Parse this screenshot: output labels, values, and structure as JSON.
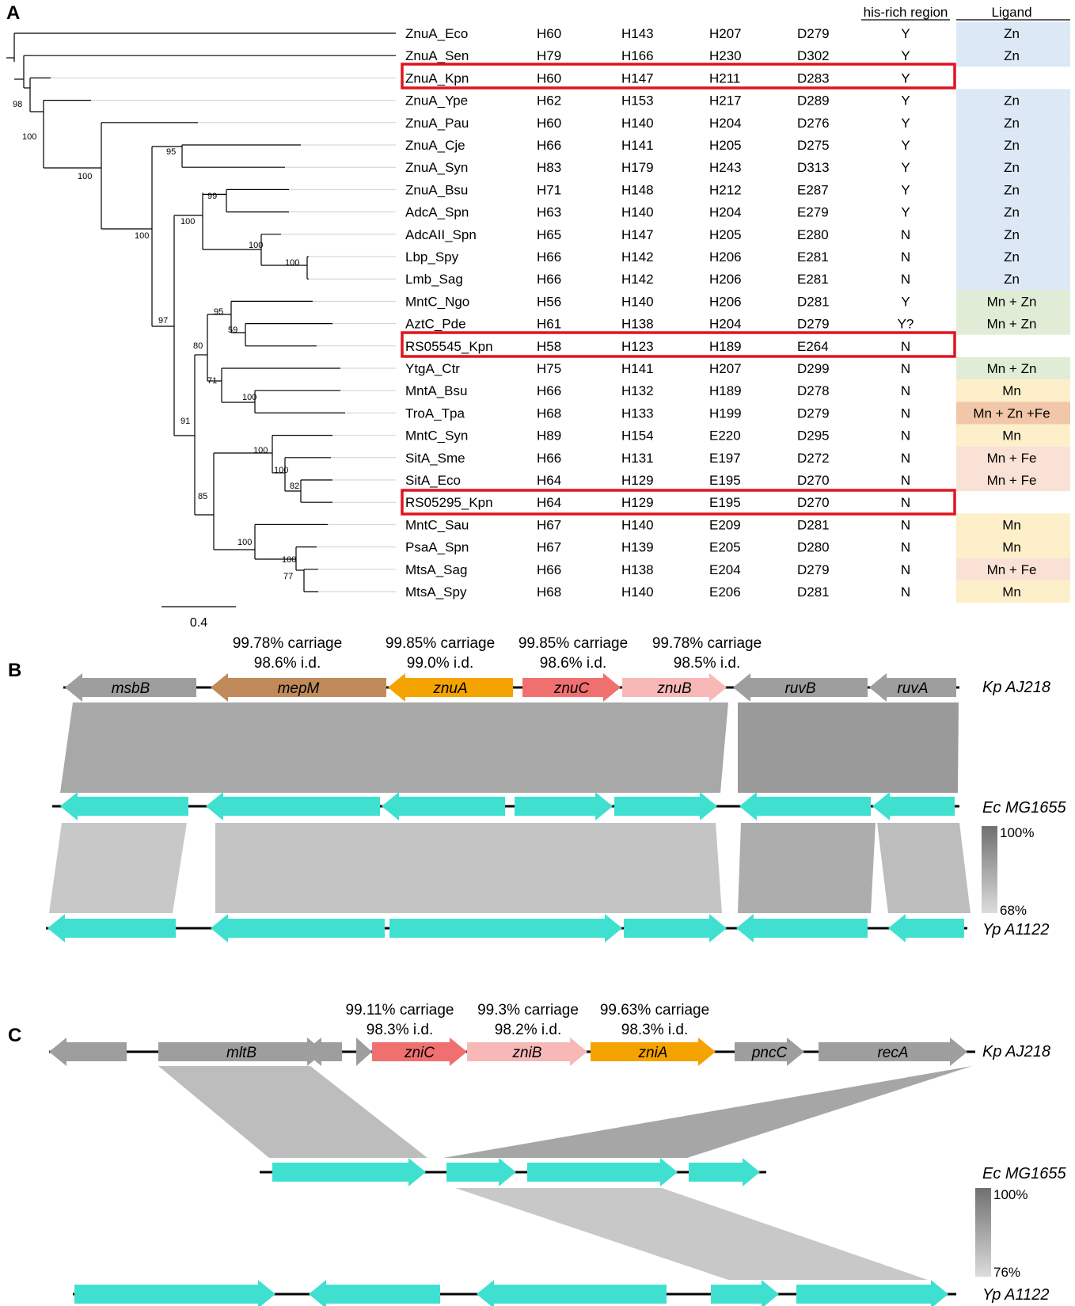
{
  "panel_a": {
    "label": "A",
    "headers": {
      "his": "his-rich region",
      "ligand": "Ligand"
    },
    "scale_value": "0.4",
    "colors": {
      "Zn": "#dce8f5",
      "Mn + Zn": "#e1ecd6",
      "Mn": "#fcefc9",
      "Mn + Fe": "#f9e1d6",
      "Mn + Zn +Fe": "#f2c6a8"
    },
    "rows": [
      {
        "name": "ZnuA_Eco",
        "r1": "H60",
        "r2": "H143",
        "r3": "H207",
        "r4": "D279",
        "his": "Y",
        "ligand": "Zn"
      },
      {
        "name": "ZnuA_Sen",
        "r1": "H79",
        "r2": "H166",
        "r3": "H230",
        "r4": "D302",
        "his": "Y",
        "ligand": "Zn"
      },
      {
        "name": "ZnuA_Kpn",
        "r1": "H60",
        "r2": "H147",
        "r3": "H211",
        "r4": "D283",
        "his": "Y",
        "ligand": "",
        "highlight": true
      },
      {
        "name": "ZnuA_Ype",
        "r1": "H62",
        "r2": "H153",
        "r3": "H217",
        "r4": "D289",
        "his": "Y",
        "ligand": "Zn"
      },
      {
        "name": "ZnuA_Pau",
        "r1": "H60",
        "r2": "H140",
        "r3": "H204",
        "r4": "D276",
        "his": "Y",
        "ligand": "Zn"
      },
      {
        "name": "ZnuA_Cje",
        "r1": "H66",
        "r2": "H141",
        "r3": "H205",
        "r4": "D275",
        "his": "Y",
        "ligand": "Zn"
      },
      {
        "name": "ZnuA_Syn",
        "r1": "H83",
        "r2": "H179",
        "r3": "H243",
        "r4": "D313",
        "his": "Y",
        "ligand": "Zn"
      },
      {
        "name": "ZnuA_Bsu",
        "r1": "H71",
        "r2": "H148",
        "r3": "H212",
        "r4": "E287",
        "his": "Y",
        "ligand": "Zn"
      },
      {
        "name": "AdcA_Spn",
        "r1": "H63",
        "r2": "H140",
        "r3": "H204",
        "r4": "E279",
        "his": "Y",
        "ligand": "Zn"
      },
      {
        "name": "AdcAII_Spn",
        "r1": "H65",
        "r2": "H147",
        "r3": "H205",
        "r4": "E280",
        "his": "N",
        "ligand": "Zn"
      },
      {
        "name": "Lbp_Spy",
        "r1": "H66",
        "r2": "H142",
        "r3": "H206",
        "r4": "E281",
        "his": "N",
        "ligand": "Zn"
      },
      {
        "name": "Lmb_Sag",
        "r1": "H66",
        "r2": "H142",
        "r3": "H206",
        "r4": "E281",
        "his": "N",
        "ligand": "Zn"
      },
      {
        "name": "MntC_Ngo",
        "r1": "H56",
        "r2": "H140",
        "r3": "H206",
        "r4": "D281",
        "his": "Y",
        "ligand": "Mn + Zn"
      },
      {
        "name": "AztC_Pde",
        "r1": "H61",
        "r2": "H138",
        "r3": "H204",
        "r4": "D279",
        "his": "Y?",
        "ligand": "Mn + Zn"
      },
      {
        "name": "RS05545_Kpn",
        "r1": "H58",
        "r2": "H123",
        "r3": "H189",
        "r4": "E264",
        "his": "N",
        "ligand": "",
        "highlight": true
      },
      {
        "name": "YtgA_Ctr",
        "r1": "H75",
        "r2": "H141",
        "r3": "H207",
        "r4": "D299",
        "his": "N",
        "ligand": "Mn + Zn"
      },
      {
        "name": "MntA_Bsu",
        "r1": "H66",
        "r2": "H132",
        "r3": "H189",
        "r4": "D278",
        "his": "N",
        "ligand": "Mn"
      },
      {
        "name": "TroA_Tpa",
        "r1": "H68",
        "r2": "H133",
        "r3": "H199",
        "r4": "D279",
        "his": "N",
        "ligand": "Mn + Zn +Fe"
      },
      {
        "name": "MntC_Syn",
        "r1": "H89",
        "r2": "H154",
        "r3": "E220",
        "r4": "D295",
        "his": "N",
        "ligand": "Mn"
      },
      {
        "name": "SitA_Sme",
        "r1": "H66",
        "r2": "H131",
        "r3": "E197",
        "r4": "D272",
        "his": "N",
        "ligand": "Mn + Fe"
      },
      {
        "name": "SitA_Eco",
        "r1": "H64",
        "r2": "H129",
        "r3": "E195",
        "r4": "D270",
        "his": "N",
        "ligand": "Mn + Fe"
      },
      {
        "name": "RS05295_Kpn",
        "r1": "H64",
        "r2": "H129",
        "r3": "E195",
        "r4": "D270",
        "his": "N",
        "ligand": "",
        "highlight": true
      },
      {
        "name": "MntC_Sau",
        "r1": "H67",
        "r2": "H140",
        "r3": "E209",
        "r4": "D281",
        "his": "N",
        "ligand": "Mn"
      },
      {
        "name": "PsaA_Spn",
        "r1": "H67",
        "r2": "H139",
        "r3": "E205",
        "r4": "D280",
        "his": "N",
        "ligand": "Mn"
      },
      {
        "name": "MtsA_Sag",
        "r1": "H66",
        "r2": "H138",
        "r3": "E204",
        "r4": "D279",
        "his": "N",
        "ligand": "Mn + Fe"
      },
      {
        "name": "MtsA_Spy",
        "r1": "H68",
        "r2": "H140",
        "r3": "E206",
        "r4": "D281",
        "his": "N",
        "ligand": "Mn"
      }
    ],
    "bootstrap": [
      "98",
      "100",
      "100",
      "95",
      "100",
      "99",
      "100",
      "100",
      "97",
      "95",
      "59",
      "80",
      "71",
      "100",
      "91",
      "100",
      "100",
      "82",
      "85",
      "100",
      "100",
      "77"
    ]
  },
  "panel_b": {
    "label": "B",
    "tracks": [
      "Kp AJ218",
      "Ec MG1655",
      "Yp A1122"
    ],
    "genes": {
      "msbB": "msbB",
      "mepM": "mepM",
      "znuA": "znuA",
      "znuC": "znuC",
      "znuB": "znuB",
      "ruvB": "ruvB",
      "ruvA": "ruvA"
    },
    "annotations": [
      {
        "carriage": "99.78% carriage",
        "id": "98.6% i.d."
      },
      {
        "carriage": "99.85% carriage",
        "id": "99.0% i.d."
      },
      {
        "carriage": "99.85% carriage",
        "id": "98.6% i.d."
      },
      {
        "carriage": "99.78% carriage",
        "id": "98.5% i.d."
      }
    ],
    "legend": {
      "max": "100%",
      "min": "68%"
    }
  },
  "panel_c": {
    "label": "C",
    "tracks": [
      "Kp AJ218",
      "Ec MG1655",
      "Yp A1122"
    ],
    "genes": {
      "mltB": "mltB",
      "zniC": "zniC",
      "zniB": "zniB",
      "zniA": "zniA",
      "pncC": "pncC",
      "recA": "recA"
    },
    "annotations": [
      {
        "carriage": "99.11% carriage",
        "id": "98.3% i.d."
      },
      {
        "carriage": "99.3% carriage",
        "id": "98.2% i.d."
      },
      {
        "carriage": "99.63% carriage",
        "id": "98.3% i.d."
      }
    ],
    "legend": {
      "max": "100%",
      "min": "76%"
    }
  },
  "gene_colors": {
    "grey": "#9e9e9e",
    "mepM": "#c08a5a",
    "znuA": "#f5a300",
    "znuC": "#f07070",
    "znuB": "#f8b8b8",
    "teal": "#40e0d0"
  }
}
